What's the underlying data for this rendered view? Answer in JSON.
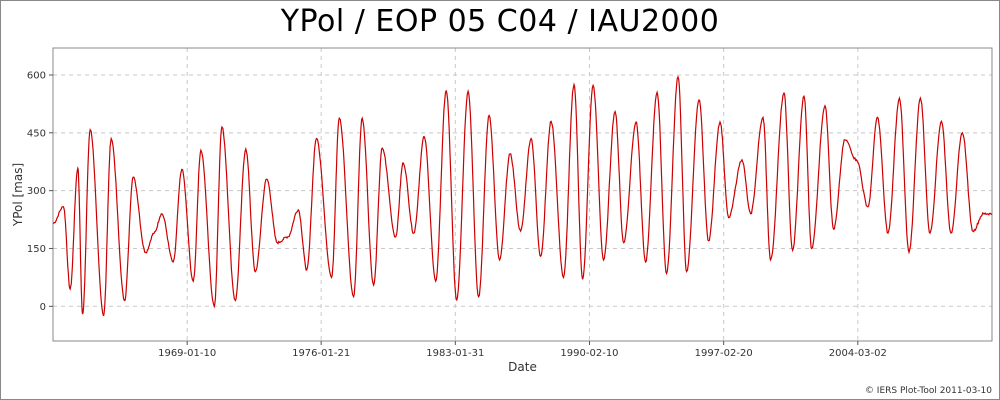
{
  "chart_data": {
    "type": "line",
    "title": "YPol / EOP 05 C04 / IAU2000",
    "xlabel": "Date",
    "ylabel": "YPol [mas]",
    "x_tick_labels": [
      "1969-01-10",
      "1976-01-21",
      "1983-01-31",
      "1990-02-10",
      "1997-02-20",
      "2004-03-02"
    ],
    "x_tick_values": [
      1969.03,
      1976.05,
      1983.08,
      1990.11,
      1997.14,
      2004.17
    ],
    "y_ticks": [
      0,
      150,
      300,
      450,
      600
    ],
    "xlim": [
      1962.0,
      2011.2
    ],
    "ylim": [
      -90,
      670
    ],
    "grid": true,
    "line_color": "#cc0000",
    "series": [
      {
        "x": [
          1962.0,
          1962.55,
          1962.9,
          1963.3,
          1963.55,
          1963.95,
          1964.65,
          1965.05,
          1965.75,
          1966.2,
          1966.85,
          1967.3,
          1967.7,
          1968.3,
          1968.75,
          1969.35,
          1969.75,
          1970.45,
          1970.85,
          1971.55,
          1972.1,
          1972.6,
          1973.2,
          1973.75,
          1974.3,
          1974.85,
          1975.3,
          1975.8,
          1976.6,
          1977.0,
          1977.75,
          1978.2,
          1978.8,
          1979.25,
          1979.95,
          1980.35,
          1980.9,
          1981.45,
          1982.05,
          1982.6,
          1983.15,
          1983.75,
          1984.3,
          1984.85,
          1985.4,
          1985.95,
          1986.5,
          1987.05,
          1987.55,
          1988.1,
          1988.75,
          1989.3,
          1989.75,
          1990.3,
          1990.85,
          1991.45,
          1991.9,
          1992.55,
          1993.05,
          1993.65,
          1994.15,
          1994.75,
          1995.2,
          1995.85,
          1996.35,
          1996.95,
          1997.4,
          1998.1,
          1998.55,
          1999.2,
          1999.6,
          2000.3,
          2000.75,
          2001.35,
          2001.75,
          2002.45,
          2002.9,
          2003.5,
          2004.1,
          2004.7,
          2005.2,
          2005.75,
          2006.35,
          2006.85,
          2007.45,
          2007.95,
          2008.55,
          2009.05,
          2009.65,
          2010.2,
          2010.75,
          2011.2
        ],
        "y": [
          215,
          258,
          45,
          358,
          -20,
          458,
          -25,
          435,
          15,
          335,
          140,
          190,
          240,
          115,
          355,
          65,
          405,
          0,
          465,
          15,
          408,
          90,
          330,
          165,
          180,
          250,
          95,
          435,
          75,
          488,
          25,
          488,
          55,
          410,
          180,
          372,
          190,
          440,
          65,
          560,
          15,
          558,
          25,
          495,
          120,
          395,
          195,
          435,
          130,
          480,
          75,
          575,
          70,
          573,
          120,
          505,
          165,
          478,
          115,
          555,
          85,
          595,
          90,
          535,
          170,
          478,
          230,
          380,
          240,
          490,
          120,
          553,
          145,
          545,
          150,
          520,
          200,
          432,
          380,
          258,
          490,
          190,
          540,
          140,
          540,
          190,
          480,
          190,
          450,
          195,
          240,
          240
        ]
      }
    ],
    "footer": "© IERS Plot-Tool 2011-03-10"
  }
}
